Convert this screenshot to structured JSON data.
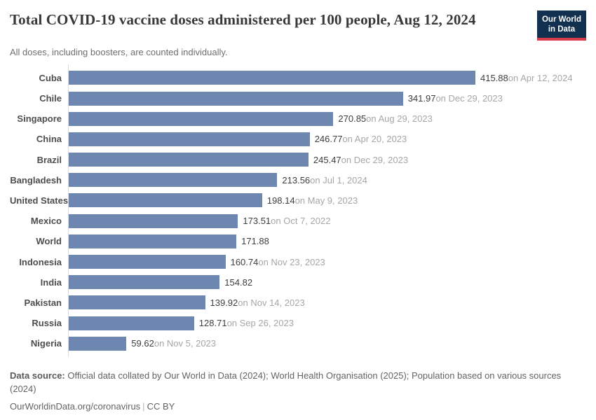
{
  "header": {
    "title": "Total COVID-19 vaccine doses administered per 100 people, Aug 12, 2024",
    "subtitle": "All doses, including boosters, are counted individually.",
    "logo": {
      "line1": "Our World",
      "line2": "in Data"
    }
  },
  "chart_data": {
    "type": "bar",
    "orientation": "horizontal",
    "title": "Total COVID-19 vaccine doses administered per 100 people, Aug 12, 2024",
    "xlabel": "",
    "ylabel": "",
    "xlim": [
      0,
      415.88
    ],
    "grid": false,
    "legend": false,
    "bar_color": "#6e87b0",
    "categories": [
      "Cuba",
      "Chile",
      "Singapore",
      "China",
      "Brazil",
      "Bangladesh",
      "United States",
      "Mexico",
      "World",
      "Indonesia",
      "India",
      "Pakistan",
      "Russia",
      "Nigeria"
    ],
    "values": [
      415.88,
      341.97,
      270.85,
      246.77,
      245.47,
      213.56,
      198.14,
      173.51,
      171.88,
      160.74,
      154.82,
      139.92,
      128.71,
      59.62
    ],
    "rows": [
      {
        "label": "Cuba",
        "value": 415.88,
        "value_label": "415.88",
        "date_label": "on Apr 12, 2024"
      },
      {
        "label": "Chile",
        "value": 341.97,
        "value_label": "341.97",
        "date_label": "on Dec 29, 2023"
      },
      {
        "label": "Singapore",
        "value": 270.85,
        "value_label": "270.85",
        "date_label": "on Aug 29, 2023"
      },
      {
        "label": "China",
        "value": 246.77,
        "value_label": "246.77",
        "date_label": "on Apr 20, 2023"
      },
      {
        "label": "Brazil",
        "value": 245.47,
        "value_label": "245.47",
        "date_label": "on Dec 29, 2023"
      },
      {
        "label": "Bangladesh",
        "value": 213.56,
        "value_label": "213.56",
        "date_label": "on Jul 1, 2024"
      },
      {
        "label": "United States",
        "value": 198.14,
        "value_label": "198.14",
        "date_label": "on May 9, 2023"
      },
      {
        "label": "Mexico",
        "value": 173.51,
        "value_label": "173.51",
        "date_label": "on Oct 7, 2022"
      },
      {
        "label": "World",
        "value": 171.88,
        "value_label": "171.88",
        "date_label": ""
      },
      {
        "label": "Indonesia",
        "value": 160.74,
        "value_label": "160.74",
        "date_label": "on Nov 23, 2023"
      },
      {
        "label": "India",
        "value": 154.82,
        "value_label": "154.82",
        "date_label": ""
      },
      {
        "label": "Pakistan",
        "value": 139.92,
        "value_label": "139.92",
        "date_label": "on Nov 14, 2023"
      },
      {
        "label": "Russia",
        "value": 128.71,
        "value_label": "128.71",
        "date_label": "on Sep 26, 2023"
      },
      {
        "label": "Nigeria",
        "value": 59.62,
        "value_label": "59.62",
        "date_label": "on Nov 5, 2023"
      }
    ]
  },
  "footer": {
    "source_label": "Data source:",
    "source_text": " Official data collated by Our World in Data (2024); World Health Organisation (2025); Population based on various sources (2024)",
    "link_text": "OurWorldinData.org/coronavirus",
    "separator": "|",
    "license": "CC BY"
  },
  "colors": {
    "bar": "#6e87b0",
    "logo_background": "#12304f",
    "logo_underline": "#d93a4a",
    "title_text": "#383838",
    "value_text": "#3d3d3d",
    "date_text": "#a6a6a6",
    "axis_line": "#dcdcdc"
  }
}
